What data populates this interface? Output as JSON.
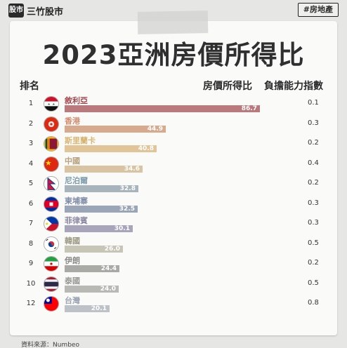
{
  "brand": {
    "logo_text": "股市",
    "name": "三竹股市"
  },
  "hashtag": "#房地產",
  "headers": {
    "rank": "排名",
    "ratio": "房價所得比",
    "afford": "負擔能力指數"
  },
  "source": "資料來源：Numbeo",
  "chart_data": {
    "type": "bar",
    "orientation": "horizontal",
    "title": "2023亞洲房價所得比",
    "categories": [
      "敘利亞",
      "香港",
      "斯里蘭卡",
      "中國",
      "尼泊爾",
      "柬埔寨",
      "菲律賓",
      "韓國",
      "伊朗",
      "泰國",
      "台灣"
    ],
    "ranks": [
      "1",
      "2",
      "3",
      "4",
      "5",
      "6",
      "7",
      "8",
      "9",
      "10",
      "12"
    ],
    "series": [
      {
        "name": "房價所得比",
        "values": [
          86.7,
          44.9,
          40.8,
          34.6,
          32.8,
          32.5,
          30.1,
          26.0,
          24.4,
          24.0,
          20.1
        ]
      }
    ],
    "value_labels": [
      "86.7",
      "44.9",
      "40.8",
      "34.6",
      "32.8",
      "32.5",
      "30.1",
      "26.0",
      "24.4",
      "24.0",
      "20.1"
    ],
    "affordability": [
      "0.1",
      "0.3",
      "0.2",
      "0.4",
      "0.2",
      "0.3",
      "0.3",
      "0.5",
      "0.2",
      "0.5",
      "0.8"
    ],
    "bar_colors": [
      "#b9797d",
      "#d7aa8e",
      "#e1c497",
      "#d8c4a2",
      "#a7b4bc",
      "#9aa5b7",
      "#a7a5ba",
      "#c6c5b6",
      "#a9a9a6",
      "#b8b8b5",
      "#bdc1c8"
    ],
    "text_colors": [
      "#a5484e",
      "#d48b6d",
      "#d9b571",
      "#b9a27e",
      "#7d9bab",
      "#7e8ba6",
      "#8d8ba4",
      "#9c9a84",
      "#8a8a87",
      "#9a9a97",
      "#9ca4b3"
    ],
    "flags": [
      "syria-flag-icon",
      "hongkong-flag-icon",
      "srilanka-flag-icon",
      "china-flag-icon",
      "nepal-flag-icon",
      "cambodia-flag-icon",
      "philippines-flag-icon",
      "korea-flag-icon",
      "iran-flag-icon",
      "thailand-flag-icon",
      "taiwan-flag-icon"
    ]
  }
}
